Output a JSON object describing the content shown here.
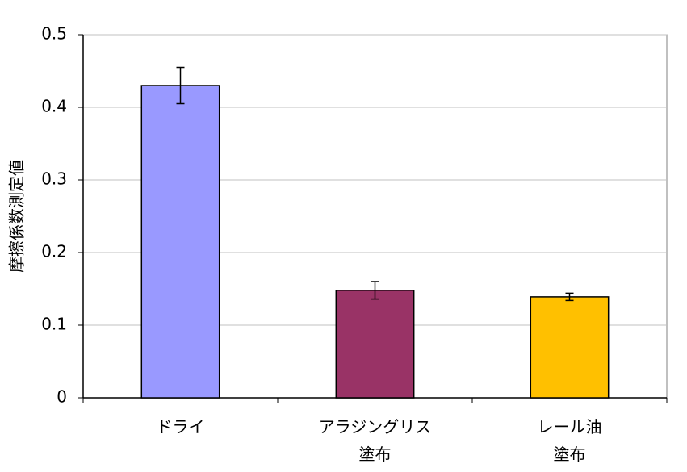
{
  "chart_data": {
    "type": "bar",
    "y_label": "摩擦係数測定値",
    "categories": [
      "ドライ",
      "アラジングリス\n塗布",
      "レール油\n塗布"
    ],
    "values": [
      0.43,
      0.148,
      0.139
    ],
    "errors": [
      0.025,
      0.012,
      0.005
    ],
    "colors": [
      "#9999ff",
      "#993366",
      "#ffc000"
    ],
    "ylim": [
      0,
      0.5
    ],
    "yticks": [
      0,
      0.1,
      0.2,
      0.3,
      0.4,
      0.5
    ],
    "grid": true
  }
}
